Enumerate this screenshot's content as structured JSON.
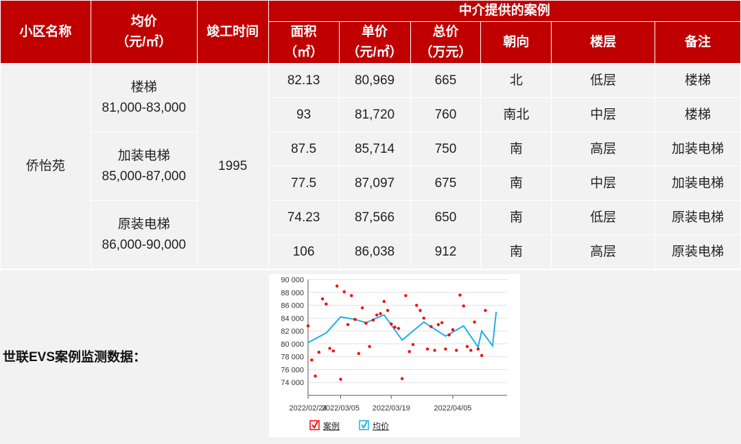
{
  "table": {
    "headers": {
      "community": "小区名称",
      "avg_price": "均价",
      "avg_price_unit": "（元/㎡）",
      "completion": "竣工时间",
      "cases_group": "中介提供的案例",
      "area": "面积",
      "area_unit": "（㎡）",
      "unit_price": "单价",
      "unit_price_unit": "（元/㎡）",
      "total": "总价",
      "total_unit": "（万元）",
      "orientation": "朝向",
      "floor": "楼层",
      "note": "备注"
    },
    "community_name": "侨怡苑",
    "completion_year": "1995",
    "groups": [
      {
        "type": "楼梯",
        "range": "81,000-83,000"
      },
      {
        "type": "加装电梯",
        "range": "85,000-87,000"
      },
      {
        "type": "原装电梯",
        "range": "86,000-90,000"
      }
    ],
    "rows": [
      {
        "area": "82.13",
        "unit_price": "80,969",
        "total": "665",
        "orientation": "北",
        "floor": "低层",
        "note": "楼梯"
      },
      {
        "area": "93",
        "unit_price": "81,720",
        "total": "760",
        "orientation": "南北",
        "floor": "中层",
        "note": "楼梯"
      },
      {
        "area": "87.5",
        "unit_price": "85,714",
        "total": "750",
        "orientation": "南",
        "floor": "高层",
        "note": "加装电梯"
      },
      {
        "area": "77.5",
        "unit_price": "87,097",
        "total": "675",
        "orientation": "南",
        "floor": "中层",
        "note": "加装电梯"
      },
      {
        "area": "74.23",
        "unit_price": "87,566",
        "total": "650",
        "orientation": "南",
        "floor": "低层",
        "note": "原装电梯"
      },
      {
        "area": "106",
        "unit_price": "86,038",
        "total": "912",
        "orientation": "南",
        "floor": "高层",
        "note": "原装电梯"
      }
    ]
  },
  "evs_label": "世联EVS案例监测数据：",
  "colors": {
    "header_red": "#c00000",
    "case_dot": "#ff0000",
    "avg_line": "#1ab0e8",
    "cell_gray": "#f2f2f2"
  },
  "chart_data": {
    "type": "scatter",
    "title": "",
    "ylim": [
      72000,
      90000
    ],
    "yticks": [
      74000,
      76000,
      78000,
      80000,
      82000,
      84000,
      86000,
      88000,
      90000
    ],
    "ytick_labels": [
      "74 000",
      "76 000",
      "78 000",
      "80 000",
      "82 000",
      "84 000",
      "86 000",
      "88 000",
      "90 000"
    ],
    "xlim": [
      "2022/02/24",
      "2022/04/20"
    ],
    "xticks": [
      "2022/02/24",
      "2022/03/05",
      "2022/03/19",
      "2022/04/05"
    ],
    "legend": {
      "position": "bottom",
      "entries": [
        "案例",
        "均价"
      ]
    },
    "series": [
      {
        "name": "案例",
        "kind": "scatter",
        "color": "#ff0000",
        "points": [
          [
            "2022/02/24",
            82800
          ],
          [
            "2022/02/25",
            77500
          ],
          [
            "2022/02/26",
            75000
          ],
          [
            "2022/02/27",
            78700
          ],
          [
            "2022/02/28",
            87000
          ],
          [
            "2022/03/01",
            86200
          ],
          [
            "2022/03/02",
            79300
          ],
          [
            "2022/03/03",
            78900
          ],
          [
            "2022/03/04",
            89000
          ],
          [
            "2022/03/05",
            74500
          ],
          [
            "2022/03/06",
            88100
          ],
          [
            "2022/03/07",
            83000
          ],
          [
            "2022/03/08",
            87500
          ],
          [
            "2022/03/09",
            83800
          ],
          [
            "2022/03/10",
            78500
          ],
          [
            "2022/03/11",
            85600
          ],
          [
            "2022/03/12",
            83200
          ],
          [
            "2022/03/13",
            79600
          ],
          [
            "2022/03/14",
            83700
          ],
          [
            "2022/03/15",
            84500
          ],
          [
            "2022/03/16",
            84700
          ],
          [
            "2022/03/17",
            86600
          ],
          [
            "2022/03/18",
            85200
          ],
          [
            "2022/03/19",
            83100
          ],
          [
            "2022/03/20",
            82600
          ],
          [
            "2022/03/21",
            82400
          ],
          [
            "2022/03/22",
            74600
          ],
          [
            "2022/03/23",
            87500
          ],
          [
            "2022/03/24",
            78800
          ],
          [
            "2022/03/25",
            79900
          ],
          [
            "2022/03/26",
            86000
          ],
          [
            "2022/03/27",
            85200
          ],
          [
            "2022/03/28",
            84000
          ],
          [
            "2022/03/29",
            79200
          ],
          [
            "2022/03/30",
            82700
          ],
          [
            "2022/03/31",
            79000
          ],
          [
            "2022/04/01",
            83000
          ],
          [
            "2022/04/02",
            83300
          ],
          [
            "2022/04/03",
            79200
          ],
          [
            "2022/04/04",
            81400
          ],
          [
            "2022/04/05",
            82200
          ],
          [
            "2022/04/06",
            79000
          ],
          [
            "2022/04/07",
            87600
          ],
          [
            "2022/04/08",
            85900
          ],
          [
            "2022/04/09",
            79600
          ],
          [
            "2022/04/10",
            79000
          ],
          [
            "2022/04/11",
            83400
          ],
          [
            "2022/04/12",
            79200
          ],
          [
            "2022/04/13",
            78200
          ],
          [
            "2022/04/14",
            85200
          ]
        ]
      },
      {
        "name": "均价",
        "kind": "line",
        "color": "#1ab0e8",
        "points": [
          [
            "2022/02/24",
            80200
          ],
          [
            "2022/02/29",
            81700
          ],
          [
            "2022/03/05",
            84200
          ],
          [
            "2022/03/09",
            83800
          ],
          [
            "2022/03/12",
            83300
          ],
          [
            "2022/03/17",
            84500
          ],
          [
            "2022/03/22",
            80600
          ],
          [
            "2022/03/28",
            83400
          ],
          [
            "2022/04/03",
            81200
          ],
          [
            "2022/04/08",
            82800
          ],
          [
            "2022/04/12",
            79500
          ],
          [
            "2022/04/13",
            82000
          ],
          [
            "2022/04/16",
            79700
          ],
          [
            "2022/04/17",
            85000
          ]
        ]
      }
    ]
  }
}
